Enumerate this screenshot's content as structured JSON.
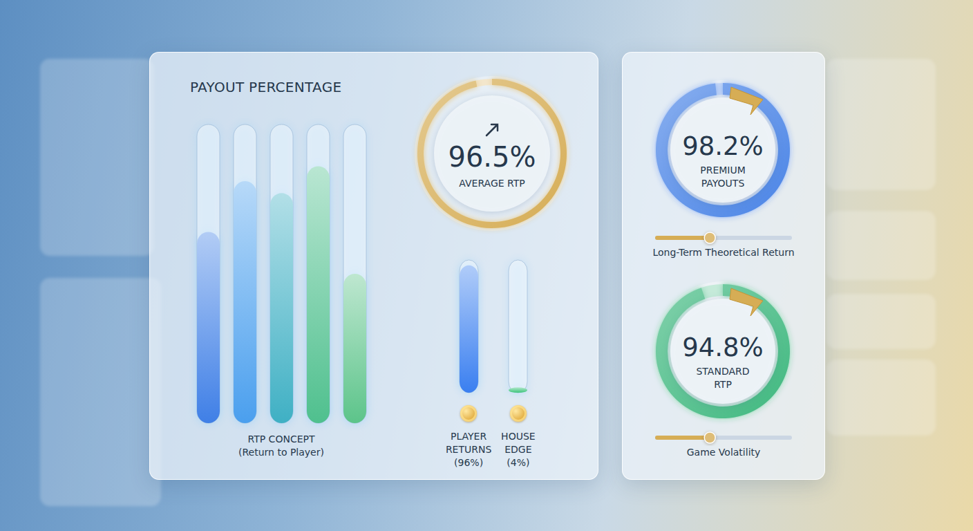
{
  "chart_data": [
    {
      "type": "bar",
      "title": "PAYOUT PERCENTAGE",
      "x_label": "RTP CONCEPT (Return to Player)",
      "categories": [
        null,
        null,
        null,
        null,
        null
      ],
      "values": [
        64,
        81,
        77,
        86,
        50
      ],
      "colors": [
        "#3f7fe6",
        "#4a9fee",
        "#3fb0c4",
        "#4fc08e",
        "#5cc48a"
      ],
      "ylim": [
        0,
        100
      ],
      "tick_labels": false
    },
    {
      "type": "bar",
      "categories": [
        "PLAYER RETURNS (96%)",
        "HOUSE EDGE (4%)"
      ],
      "values": [
        96,
        4
      ],
      "colors": [
        "#3a7ff0",
        "#3cc47a"
      ],
      "ylim": [
        0,
        100
      ],
      "tick_labels": "x"
    },
    {
      "type": "gauge",
      "title": "AVERAGE RTP",
      "values": [
        96.5
      ],
      "value_labels": [
        "96.5%"
      ],
      "ylim": [
        0,
        100
      ],
      "color": "#d6ad55",
      "data_labels": true
    },
    {
      "type": "gauge",
      "title": "PREMIUM PAYOUTS",
      "values": [
        98.2
      ],
      "value_labels": [
        "98.2%"
      ],
      "ylim": [
        0,
        100
      ],
      "color": "#4a84e6",
      "data_labels": true
    },
    {
      "type": "slider",
      "title": "Long-Term Theoretical Return",
      "values": [
        40
      ],
      "xlim": [
        0,
        100
      ],
      "color": "#d6ad55",
      "tick_labels": false
    },
    {
      "type": "gauge",
      "title": "STANDARD RTP",
      "values": [
        94.8
      ],
      "value_labels": [
        "94.8%"
      ],
      "ylim": [
        0,
        100
      ],
      "color": "#3fb87f",
      "data_labels": true
    },
    {
      "type": "slider",
      "title": "Game Volatility",
      "values": [
        40
      ],
      "xlim": [
        0,
        100
      ],
      "color": "#d6ad55",
      "tick_labels": false
    }
  ]
}
